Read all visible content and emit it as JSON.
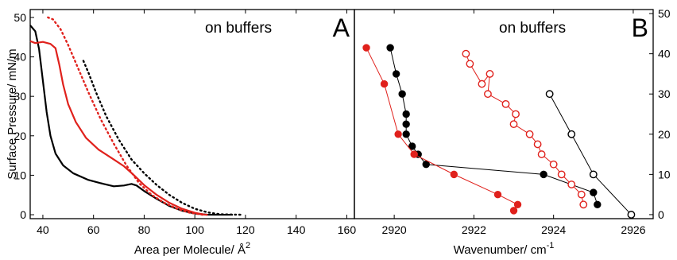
{
  "chart_data": [
    {
      "type": "line",
      "panel_label": "A",
      "annotation": "on buffers",
      "xlabel": "Area per Molecule/ Å",
      "xlabel_sup": "2",
      "ylabel": "Surface Pressure/ mN/m",
      "xlim": [
        35,
        163
      ],
      "ylim": [
        -1,
        52
      ],
      "xticks": [
        40,
        60,
        80,
        100,
        120,
        140,
        160
      ],
      "yticks": [
        0,
        10,
        20,
        30,
        40,
        50
      ],
      "grid": false,
      "colors": {
        "black": "#000000",
        "red": "#e0211c"
      },
      "series": [
        {
          "color": "#000000",
          "style": "solid",
          "points": [
            [
              35,
              48
            ],
            [
              37,
              46.5
            ],
            [
              38.5,
              42
            ],
            [
              40,
              34
            ],
            [
              41.5,
              26
            ],
            [
              43,
              20
            ],
            [
              45,
              15.5
            ],
            [
              48,
              12.5
            ],
            [
              52,
              10.5
            ],
            [
              58,
              8.8
            ],
            [
              64,
              7.8
            ],
            [
              68,
              7.2
            ],
            [
              72,
              7.4
            ],
            [
              75,
              7.8
            ],
            [
              77,
              7.4
            ],
            [
              80,
              6
            ],
            [
              85,
              4
            ],
            [
              90,
              2.2
            ],
            [
              95,
              1
            ],
            [
              100,
              0.3
            ],
            [
              105,
              0
            ],
            [
              115,
              0
            ]
          ]
        },
        {
          "color": "#e0211c",
          "style": "solid",
          "points": [
            [
              35,
              44
            ],
            [
              37,
              43.5
            ],
            [
              40,
              43.8
            ],
            [
              43,
              43.3
            ],
            [
              45,
              42.2
            ],
            [
              46.5,
              38
            ],
            [
              48,
              33
            ],
            [
              50,
              28
            ],
            [
              53,
              23.5
            ],
            [
              57,
              19.5
            ],
            [
              62,
              16.5
            ],
            [
              68,
              14
            ],
            [
              72,
              12.3
            ],
            [
              76,
              10
            ],
            [
              80,
              7.5
            ],
            [
              85,
              5
            ],
            [
              90,
              3
            ],
            [
              95,
              1.5
            ],
            [
              100,
              0.5
            ],
            [
              104,
              0
            ]
          ]
        },
        {
          "color": "#e0211c",
          "style": "dotted",
          "points": [
            [
              42,
              50
            ],
            [
              44,
              49.5
            ],
            [
              47,
              47
            ],
            [
              50,
              43
            ],
            [
              54,
              37
            ],
            [
              58,
              31
            ],
            [
              63,
              24
            ],
            [
              68,
              18
            ],
            [
              73,
              12.5
            ],
            [
              78,
              8
            ],
            [
              83,
              5
            ],
            [
              88,
              3
            ],
            [
              93,
              1.5
            ],
            [
              98,
              0.5
            ],
            [
              103,
              0
            ],
            [
              106,
              0
            ]
          ]
        },
        {
          "color": "#000000",
          "style": "dotted",
          "points": [
            [
              56,
              39
            ],
            [
              58,
              36
            ],
            [
              61,
              31
            ],
            [
              65,
              25
            ],
            [
              70,
              19
            ],
            [
              75,
              14
            ],
            [
              80,
              10.5
            ],
            [
              85,
              7.5
            ],
            [
              90,
              5
            ],
            [
              95,
              3
            ],
            [
              100,
              1.5
            ],
            [
              105,
              0.6
            ],
            [
              110,
              0.1
            ],
            [
              118,
              0
            ]
          ]
        }
      ]
    },
    {
      "type": "scatter",
      "panel_label": "B",
      "annotation": "on buffers",
      "xlabel": "Wavenumber/ cm",
      "xlabel_sup": "-1",
      "xlim": [
        2919,
        2926.5
      ],
      "ylim": [
        -1,
        51
      ],
      "xticks": [
        2920,
        2922,
        2924,
        2926
      ],
      "yticks": [
        0,
        10,
        20,
        30,
        40,
        50
      ],
      "grid": false,
      "series": [
        {
          "color": "#000000",
          "marker": "filled-circle",
          "points": [
            [
              2919.9,
              41.5
            ],
            [
              2920.05,
              35
            ],
            [
              2920.2,
              30
            ],
            [
              2920.3,
              25
            ],
            [
              2920.3,
              22.5
            ],
            [
              2920.3,
              20
            ],
            [
              2920.45,
              17
            ],
            [
              2920.6,
              15
            ],
            [
              2920.8,
              12.5
            ],
            [
              2923.75,
              10
            ],
            [
              2925,
              5.5
            ],
            [
              2925.1,
              2.5
            ]
          ]
        },
        {
          "color": "#e0211c",
          "marker": "filled-circle",
          "points": [
            [
              2919.3,
              41.5
            ],
            [
              2919.75,
              32.5
            ],
            [
              2920.1,
              20
            ],
            [
              2920.5,
              15
            ],
            [
              2921.5,
              10
            ],
            [
              2922.6,
              5
            ],
            [
              2923.1,
              2.5
            ],
            [
              2923.0,
              1
            ]
          ]
        },
        {
          "color": "#e0211c",
          "marker": "open-circle",
          "points": [
            [
              2921.8,
              40
            ],
            [
              2921.9,
              37.5
            ],
            [
              2922.2,
              32.5
            ],
            [
              2922.4,
              35
            ],
            [
              2922.35,
              30
            ],
            [
              2922.8,
              27.5
            ],
            [
              2923.05,
              25
            ],
            [
              2923.0,
              22.5
            ],
            [
              2923.4,
              20
            ],
            [
              2923.6,
              17.5
            ],
            [
              2923.7,
              15
            ],
            [
              2924.0,
              12.5
            ],
            [
              2924.2,
              10
            ],
            [
              2924.45,
              7.5
            ],
            [
              2924.7,
              5
            ],
            [
              2924.75,
              2.5
            ]
          ]
        },
        {
          "color": "#000000",
          "marker": "open-circle",
          "points": [
            [
              2923.9,
              30
            ],
            [
              2924.45,
              20
            ],
            [
              2925,
              10
            ],
            [
              2925.95,
              0
            ]
          ]
        }
      ]
    }
  ]
}
